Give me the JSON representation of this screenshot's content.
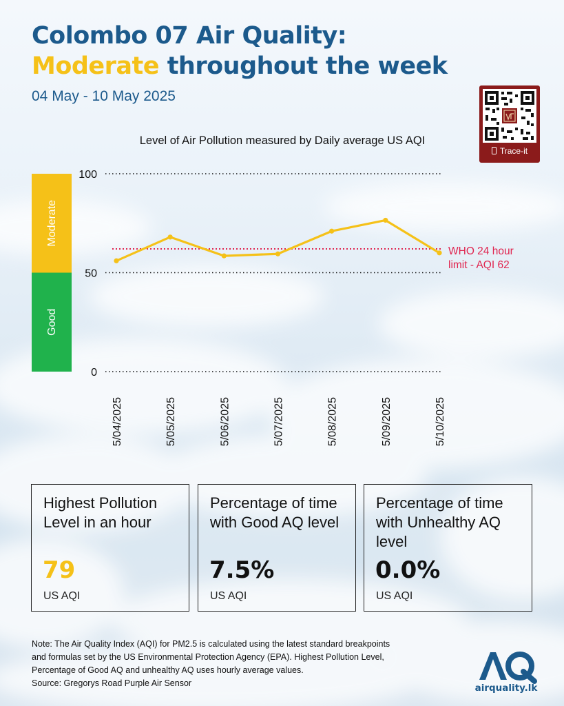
{
  "header": {
    "title_line1": "Colombo 07 Air Quality:",
    "title_highlight": "Moderate",
    "title_rest": " throughout the week",
    "date_range": "04 May - 10 May 2025"
  },
  "qr": {
    "label": "Trace-it",
    "icon": "phone-icon"
  },
  "chart_data": {
    "type": "line",
    "title": "Level of Air Pollution measured by Daily average US AQI",
    "categories": [
      "5/04/2025",
      "5/05/2025",
      "5/06/2025",
      "5/07/2025",
      "5/08/2025",
      "5/09/2025",
      "5/10/2025"
    ],
    "values": [
      56,
      68,
      58.5,
      59.5,
      71,
      76.5,
      60
    ],
    "yticks": [
      0,
      50,
      100
    ],
    "ylim": [
      0,
      100
    ],
    "bands": [
      {
        "label": "Good",
        "from": 0,
        "to": 50,
        "color": "#20b24c"
      },
      {
        "label": "Moderate",
        "from": 50,
        "to": 100,
        "color": "#f5c118"
      }
    ],
    "reference_line": {
      "value": 62,
      "label_line1": "WHO 24 hour",
      "label_line2": "limit - AQI 62",
      "color": "#e0234e"
    },
    "line_color": "#f5c118",
    "grid": "dotted at ticks"
  },
  "cards": [
    {
      "title": "Highest Pollution Level in an hour",
      "value": "79",
      "unit": "US AQI",
      "accent": "#f5c118"
    },
    {
      "title": "Percentage of time with Good AQ level",
      "value": "7.5%",
      "unit": "US AQI",
      "accent": "#111111"
    },
    {
      "title": "Percentage of time with Unhealthy AQ level",
      "value": "0.0%",
      "unit": "US AQI",
      "accent": "#111111"
    }
  ],
  "note": {
    "line1": "Note: The Air Quality Index (AQI) for PM2.5 is calculated using the latest standard breakpoints",
    "line2": "and formulas set by the US Environmental Protection Agency (EPA). Highest Pollution Level,",
    "line3": "Percentage of Good AQ and unhealthy AQ uses hourly average values.",
    "line4": "Source: Gregorys Road Purple Air Sensor"
  },
  "logo": {
    "mark": "AQ",
    "text": "airquality.lk"
  }
}
